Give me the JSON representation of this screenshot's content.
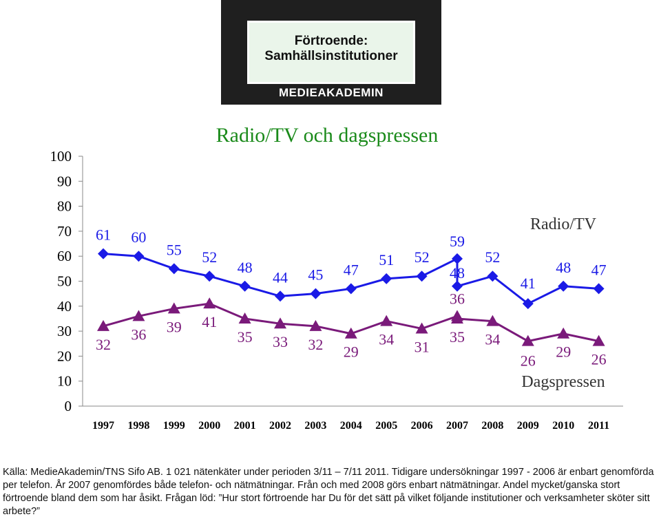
{
  "logo": {
    "title": "Förtroende:\nSamhällsinstitutioner",
    "brand": "MEDIEAKADEMIN"
  },
  "colors": {
    "title": "#1a8a1a",
    "radio_tv": "#1a1ae6",
    "dagspressen": "#7a1a7a",
    "axis_text": "#000000"
  },
  "chart_data": {
    "type": "line",
    "title": "Radio/TV och dagspressen",
    "xlabel": "",
    "ylabel": "",
    "ylim": [
      0,
      100
    ],
    "yticks": [
      0,
      10,
      20,
      30,
      40,
      50,
      60,
      70,
      80,
      90,
      100
    ],
    "x": [
      "1997",
      "1998",
      "1999",
      "2000",
      "2001",
      "2002",
      "2003",
      "2004",
      "2005",
      "2006",
      "2007",
      "2008",
      "2009",
      "2010",
      "2011"
    ],
    "series": [
      {
        "name": "Radio/TV",
        "marker": "diamond",
        "values": [
          {
            "x": "1997",
            "y": 61
          },
          {
            "x": "1998",
            "y": 60
          },
          {
            "x": "1999",
            "y": 55
          },
          {
            "x": "2000",
            "y": 52
          },
          {
            "x": "2001",
            "y": 48
          },
          {
            "x": "2002",
            "y": 44
          },
          {
            "x": "2003",
            "y": 45
          },
          {
            "x": "2004",
            "y": 47
          },
          {
            "x": "2005",
            "y": 51
          },
          {
            "x": "2006",
            "y": 52
          },
          {
            "x": "2007",
            "y": 59
          },
          {
            "x": "2007",
            "y": 48
          },
          {
            "x": "2008",
            "y": 52
          },
          {
            "x": "2009",
            "y": 41
          },
          {
            "x": "2010",
            "y": 48
          },
          {
            "x": "2011",
            "y": 47
          }
        ]
      },
      {
        "name": "Dagspressen",
        "marker": "triangle",
        "values": [
          {
            "x": "1997",
            "y": 32
          },
          {
            "x": "1998",
            "y": 36
          },
          {
            "x": "1999",
            "y": 39
          },
          {
            "x": "2000",
            "y": 41
          },
          {
            "x": "2001",
            "y": 35
          },
          {
            "x": "2002",
            "y": 33
          },
          {
            "x": "2003",
            "y": 32
          },
          {
            "x": "2004",
            "y": 29
          },
          {
            "x": "2005",
            "y": 34
          },
          {
            "x": "2006",
            "y": 31
          },
          {
            "x": "2007",
            "y": 36
          },
          {
            "x": "2007",
            "y": 35
          },
          {
            "x": "2008",
            "y": 34
          },
          {
            "x": "2009",
            "y": 26
          },
          {
            "x": "2010",
            "y": 29
          },
          {
            "x": "2011",
            "y": 26
          }
        ]
      }
    ],
    "legend": "inline labels at right"
  },
  "source_text": "Källa: MedieAkademin/TNS Sifo AB. 1 021 nätenkäter under perioden 3/11 – 7/11 2011. Tidigare undersökningar 1997 - 2006 är enbart genomförda per telefon. År 2007 genomfördes både telefon- och nätmätningar. Från och med 2008 görs enbart nätmätningar. Andel mycket/ganska stort förtroende bland dem som har åsikt. Frågan löd: ”Hur stort förtroende har Du för det sätt på vilket följande institutioner och verksamheter sköter sitt arbete?”"
}
